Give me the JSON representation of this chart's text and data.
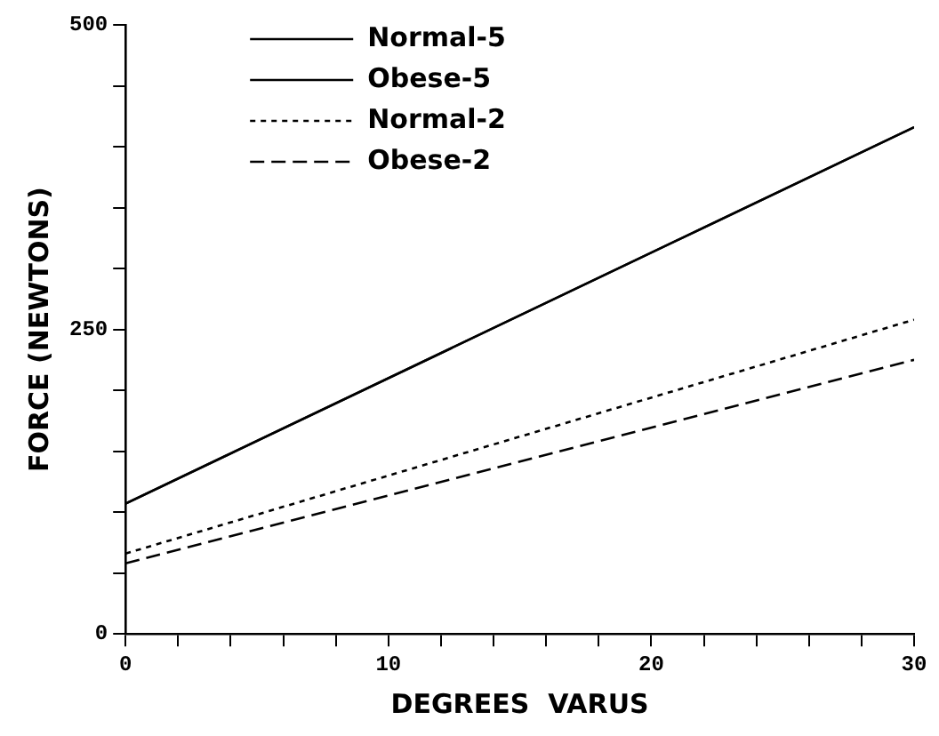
{
  "chart_data": {
    "type": "line",
    "xlabel": "DEGREES  VARUS",
    "ylabel": "FORCE (NEWTONS)",
    "x": [
      0,
      30
    ],
    "series": [
      {
        "name": "Normal-5",
        "color": "#000000",
        "line_style": "solid",
        "values": [
          107,
          416
        ]
      },
      {
        "name": "Obese-5",
        "color": "#000000",
        "line_style": "solid",
        "values": [
          107,
          416
        ]
      },
      {
        "name": "Normal-2",
        "color": "#000000",
        "line_style": "dotted",
        "values": [
          66,
          258
        ]
      },
      {
        "name": "Obese-2",
        "color": "#000000",
        "line_style": "dashed",
        "values": [
          58,
          225
        ]
      }
    ],
    "xlim": [
      0,
      30
    ],
    "ylim": [
      0,
      500
    ],
    "xticks": [
      0,
      {
        "value": 2,
        "label": null
      },
      {
        "value": 4,
        "label": null
      },
      {
        "value": 6,
        "label": null
      },
      {
        "value": 8,
        "label": null
      },
      10,
      {
        "value": 12,
        "label": null
      },
      {
        "value": 14,
        "label": null
      },
      {
        "value": 16,
        "label": null
      },
      {
        "value": 18,
        "label": null
      },
      20,
      {
        "value": 22,
        "label": null
      },
      {
        "value": 24,
        "label": null
      },
      {
        "value": 26,
        "label": null
      },
      {
        "value": 28,
        "label": null
      },
      30
    ],
    "yticks": [
      0,
      {
        "value": 50,
        "label": null
      },
      {
        "value": 100,
        "label": null
      },
      {
        "value": 150,
        "label": null
      },
      {
        "value": 200,
        "label": null
      },
      250,
      {
        "value": 300,
        "label": null
      },
      {
        "value": 350,
        "label": null
      },
      {
        "value": 400,
        "label": null
      },
      {
        "value": 450,
        "label": null
      },
      500
    ],
    "legend": "top left",
    "grid": false,
    "marker": "none"
  }
}
